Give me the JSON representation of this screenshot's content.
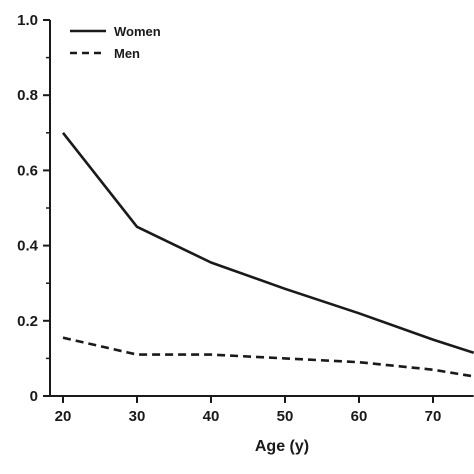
{
  "chart_data": {
    "type": "line",
    "xlabel": "Age (y)",
    "ylabel": "",
    "xlim": [
      18,
      75.5
    ],
    "ylim": [
      0,
      1.0
    ],
    "x_ticks": [
      20,
      30,
      40,
      50,
      60,
      70
    ],
    "y_ticks": [
      0,
      0.2,
      0.4,
      0.6,
      0.8,
      1.0
    ],
    "y_tick_labels": [
      "0",
      "0.2",
      "0.4",
      "0.6",
      "0.8",
      "1.0"
    ],
    "legend_position": "top-left",
    "series": [
      {
        "name": "Women",
        "style": "solid",
        "x": [
          20,
          30,
          40,
          50,
          60,
          70,
          75.5
        ],
        "y": [
          0.7,
          0.45,
          0.355,
          0.285,
          0.22,
          0.15,
          0.115
        ]
      },
      {
        "name": "Men",
        "style": "dashed",
        "x": [
          20,
          30,
          40,
          50,
          60,
          70,
          75.5
        ],
        "y": [
          0.155,
          0.11,
          0.11,
          0.1,
          0.09,
          0.07,
          0.052
        ]
      }
    ],
    "colors": {
      "line": "#1a1a1a",
      "axis": "#1a1a1a"
    }
  }
}
